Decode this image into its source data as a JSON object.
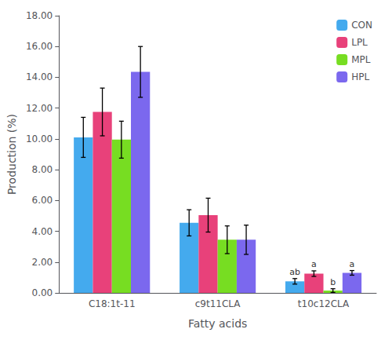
{
  "chart_data": {
    "type": "bar",
    "xlabel": "Fatty acids",
    "ylabel": "Production (%)",
    "categories": [
      "C18:1t-11",
      "c9t11CLA",
      "t10c12CLA"
    ],
    "series": [
      {
        "name": "CON",
        "color": "#44AAEE",
        "values": [
          10.1,
          4.55,
          0.75
        ],
        "errors": [
          1.3,
          0.85,
          0.18
        ]
      },
      {
        "name": "LPL",
        "color": "#E8417A",
        "values": [
          11.75,
          5.05,
          1.25
        ],
        "errors": [
          1.55,
          1.1,
          0.18
        ]
      },
      {
        "name": "MPL",
        "color": "#77DD22",
        "values": [
          9.95,
          3.45,
          0.15
        ],
        "errors": [
          1.2,
          0.9,
          0.12
        ]
      },
      {
        "name": "HPL",
        "color": "#7B68EE",
        "values": [
          14.35,
          3.45,
          1.3
        ],
        "errors": [
          1.65,
          0.95,
          0.15
        ]
      }
    ],
    "annotations": [
      {
        "text": "ab",
        "category": "t10c12CLA",
        "series": "CON"
      },
      {
        "text": "a",
        "category": "t10c12CLA",
        "series": "LPL"
      },
      {
        "text": "b",
        "category": "t10c12CLA",
        "series": "MPL"
      },
      {
        "text": "a",
        "category": "t10c12CLA",
        "series": "HPL"
      }
    ],
    "ylim": [
      0,
      18.0
    ],
    "yticks": [
      {
        "value": 0.0,
        "label": "0.00"
      },
      {
        "value": 2.0,
        "label": "2.00"
      },
      {
        "value": 4.0,
        "label": "4.00"
      },
      {
        "value": 6.0,
        "label": "6.00"
      },
      {
        "value": 8.0,
        "label": "8.00"
      },
      {
        "value": 10.0,
        "label": "10.00"
      },
      {
        "value": 12.0,
        "label": "12.00"
      },
      {
        "value": 14.0,
        "label": "14.00"
      },
      {
        "value": 16.0,
        "label": "16.00"
      },
      {
        "value": 18.0,
        "label": "18.00"
      }
    ],
    "grid": false,
    "legend": "upper right"
  }
}
